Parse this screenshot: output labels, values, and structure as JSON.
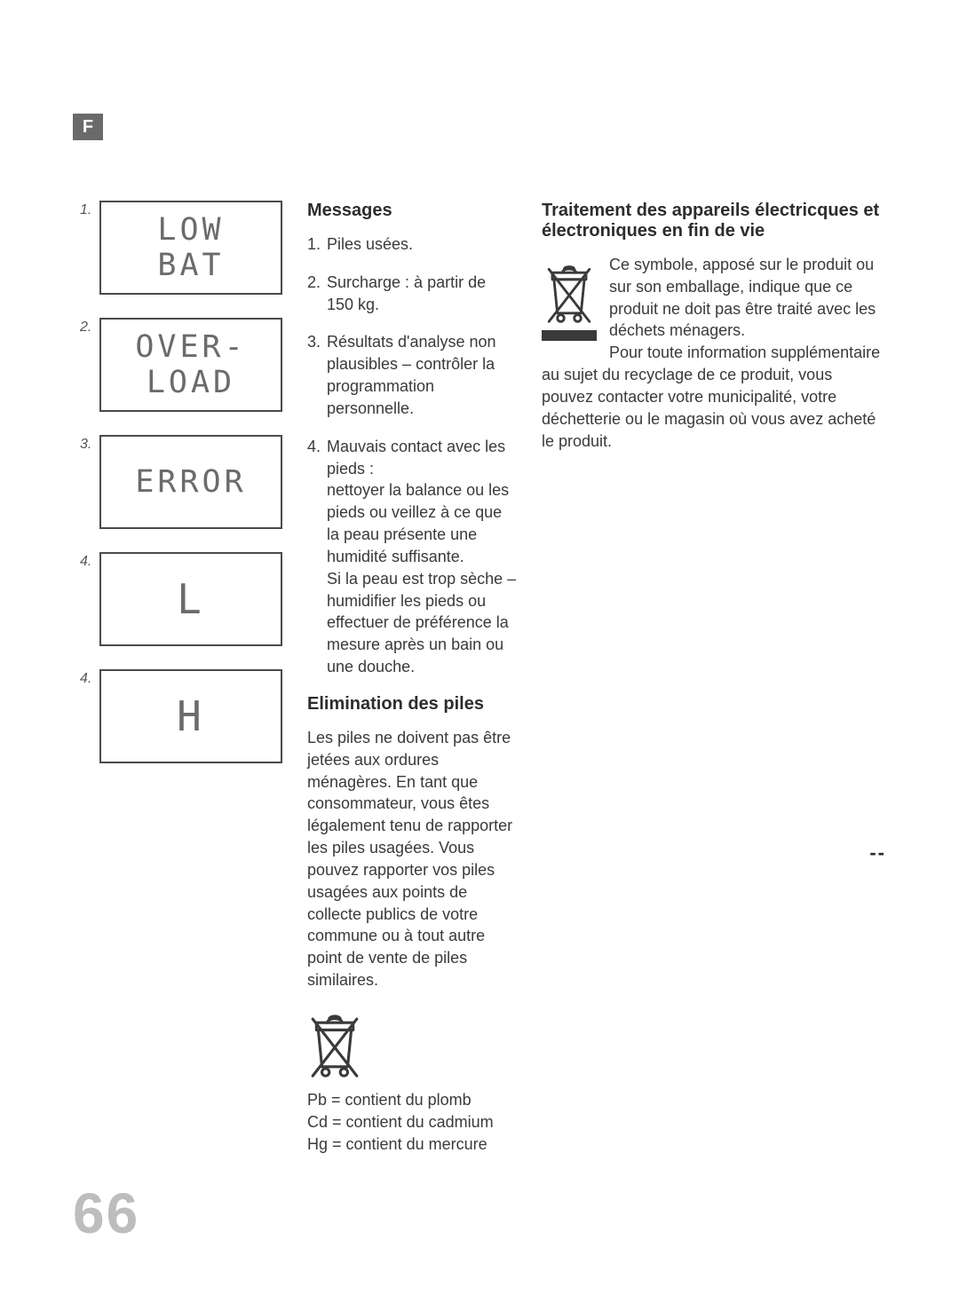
{
  "langTab": "F",
  "pageNumber": "66",
  "dashes": "--",
  "displays": [
    {
      "label": "1.",
      "text": "LOW\nBAT",
      "size": "disp-lg"
    },
    {
      "label": "2.",
      "text": "OVER-\nLOAD",
      "size": "disp-lg"
    },
    {
      "label": "3.",
      "text": "ERROR",
      "size": "disp-lg"
    },
    {
      "label": "4.",
      "text": "L",
      "size": "disp-xl"
    },
    {
      "label": "4.",
      "text": "H",
      "size": "disp-xl"
    }
  ],
  "messages": {
    "heading": "Messages",
    "items": [
      {
        "n": "1.",
        "t": "Piles usées."
      },
      {
        "n": "2.",
        "t": "Surcharge : à partir de 150 kg."
      },
      {
        "n": "3.",
        "t": "Résultats d'analyse non plausibles – contrôler la programmation personnelle."
      },
      {
        "n": "4.",
        "t": "Mauvais contact avec les pieds :\nnettoyer la balance ou les pieds ou veillez à ce que la peau présente une humidité suffisante.\nSi la peau est trop sèche – humidifier les pieds ou effectuer de préférence la mesure après un bain ou une douche."
      }
    ]
  },
  "piles": {
    "heading": "Elimination des piles",
    "paragraph": "Les piles ne doivent pas être jetées aux ordures ménagères. En tant que consommateur, vous êtes légalement tenu de rapporter les piles usagées. Vous pouvez rapporter vos piles usagées aux points de collecte publics de votre commune ou à tout autre point de vente de piles similaires.",
    "chem": [
      "Pb = contient du plomb",
      "Cd = contient du cadmium",
      "Hg = contient du mercure"
    ]
  },
  "weee": {
    "heading": "Traitement des appareils électricques et électroniques en fin de vie",
    "paragraph": "Ce symbole, apposé sur le produit ou sur son emballage, indique que ce produit ne doit pas être traité avec les déchets ménagers.\nPour toute information supplémentaire au sujet du recyclage de ce produit, vous pouvez contacter votre municipalité, votre déchetterie ou le magasin où vous avez acheté le produit."
  },
  "colors": {
    "tabBg": "#6a6a6a",
    "border": "#4a4a4a",
    "text": "#3a3a3a",
    "pagenum": "#bdbdbd"
  }
}
